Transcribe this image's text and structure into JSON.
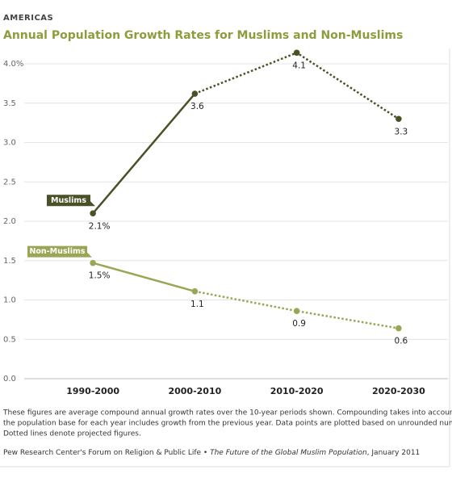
{
  "chart_data": {
    "type": "line",
    "kicker": "AMERICAS",
    "title": "Annual Population Growth Rates for Muslims and Non-Muslims",
    "categories": [
      "1990-2000",
      "2000-2010",
      "2010-2020",
      "2020-2030"
    ],
    "projected_start": "2000-2010",
    "series": [
      {
        "name": "Muslims",
        "color": "#4a5126",
        "values": [
          2.1,
          3.62,
          4.14,
          3.3
        ],
        "value_labels": [
          "2.1%",
          "3.6",
          "4.1",
          "3.3"
        ]
      },
      {
        "name": "Non-Muslims",
        "color": "#9ba654",
        "values": [
          1.47,
          1.11,
          0.86,
          0.64
        ],
        "value_labels": [
          "1.5%",
          "1.1",
          "0.9",
          "0.6"
        ]
      }
    ],
    "ylim": [
      0,
      4
    ],
    "yticks": [
      {
        "value": 0,
        "label": "0.0"
      },
      0.5,
      {
        "value": 1,
        "label": "1.0"
      },
      1.5,
      {
        "value": 2,
        "label": "2.0"
      },
      2.5,
      {
        "value": 3,
        "label": "3.0"
      },
      3.5,
      {
        "value": 4,
        "label": "4.0%"
      }
    ],
    "grid": true,
    "notes": [
      "These figures are average compound annual growth rates over the 10-year periods shown. Compounding takes into account that",
      "the population base for each year includes growth from the previous year. Data points are plotted based on unrounded numbers.",
      "Dotted lines denote projected figures."
    ],
    "source": [
      "Pew Research Center's Forum on Religion & Public Life • ",
      "The Future of the Global Muslim Population",
      ", January 2011"
    ]
  }
}
